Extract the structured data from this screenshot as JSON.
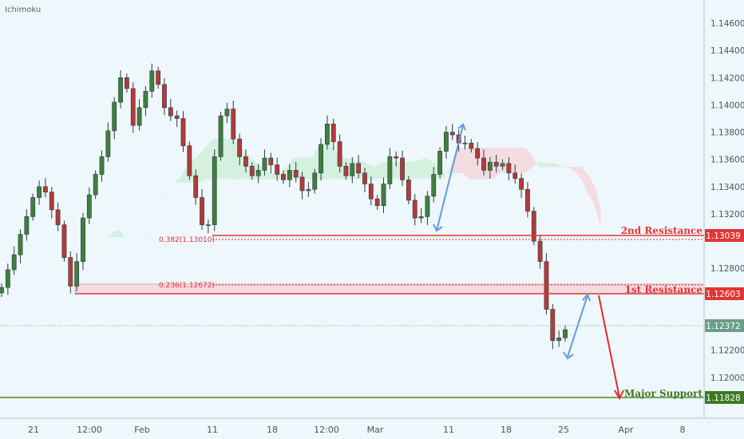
{
  "chart_data": {
    "type": "line",
    "title": "",
    "indicator_name": "Ichimoku",
    "xlabel": "",
    "ylabel": "",
    "x_ticks": [
      "21",
      "12:00",
      "Feb",
      "11",
      "18",
      "12:00",
      "Mar",
      "11",
      "18",
      "25",
      "Apr",
      "8"
    ],
    "y_ticks": [
      "1.14600",
      "1.14400",
      "1.14200",
      "1.14000",
      "1.13800",
      "1.13600",
      "1.13400",
      "1.13200",
      "1.12800",
      "1.12200",
      "1.12000"
    ],
    "ylim": [
      1.117,
      1.1477
    ],
    "grid": false,
    "colors": {
      "background": "#eef7fb",
      "up": "#3f7f3f",
      "down": "#b23b3b",
      "resistance": "#e33535",
      "support": "#4f8a2b",
      "arrow_blue": "#5d9be0",
      "arrow_red": "#e32b2b",
      "cloud_green": "#c9ecd3",
      "cloud_red": "#f7d0d5"
    },
    "series": [
      {
        "values": [
          1.1266,
          1.1279,
          1.129,
          1.1305,
          1.1318,
          1.1332,
          1.134,
          1.1336,
          1.1323,
          1.1312,
          1.1288,
          1.1267,
          1.1285,
          1.1317,
          1.1334,
          1.1349,
          1.1362,
          1.1381,
          1.1402,
          1.142,
          1.1412,
          1.1385,
          1.1398,
          1.141,
          1.1425,
          1.1415,
          1.1398,
          1.1392,
          1.139,
          1.137,
          1.1348,
          1.1332,
          1.1312,
          1.1312,
          1.1362,
          1.1392,
          1.1397,
          1.1375,
          1.1362,
          1.1355,
          1.1348,
          1.1352,
          1.1361,
          1.1356,
          1.1349,
          1.1345,
          1.1352,
          1.1347,
          1.1337,
          1.1338,
          1.135,
          1.1371,
          1.1386,
          1.1373,
          1.1355,
          1.1348,
          1.1357,
          1.135,
          1.1342,
          1.1331,
          1.1326,
          1.1342,
          1.1362,
          1.1361,
          1.1345,
          1.133,
          1.1317,
          1.1318,
          1.1333,
          1.1349,
          1.1366,
          1.138,
          1.1378,
          1.1372,
          1.1372,
          1.1368,
          1.1361,
          1.1352,
          1.1358,
          1.1355,
          1.1357,
          1.135,
          1.1346,
          1.1338,
          1.1322,
          1.13,
          1.1285,
          1.125,
          1.1227,
          1.1229,
          1.1235
        ]
      }
    ],
    "levels": [
      {
        "label": "2nd Resistance",
        "value": "1.13039"
      },
      {
        "label": "1st Resistance",
        "value": "1.12603"
      },
      {
        "label": "Major Support",
        "value": "1.11828"
      }
    ],
    "current_price": "1.12372",
    "fib_labels": [
      "0.382(1.13010)",
      "0.236(1.12672)"
    ]
  }
}
